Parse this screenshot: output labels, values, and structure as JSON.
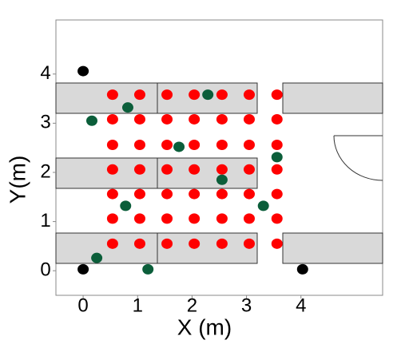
{
  "chart_data": {
    "type": "scatter",
    "xlabel": "X (m)",
    "ylabel": "Y(m)",
    "xlim": [
      -0.5,
      5.5
    ],
    "ylim": [
      -0.5,
      5.1
    ],
    "xticks": [
      0,
      1,
      2,
      3,
      4
    ],
    "yticks": [
      0,
      1,
      2,
      3,
      4
    ],
    "series": [
      {
        "color": "#ff0000",
        "x": [
          0.54,
          1.04,
          1.54,
          2.04,
          2.55,
          3.05,
          3.56,
          0.54,
          1.04,
          1.54,
          2.04,
          2.55,
          3.05,
          3.56,
          0.54,
          1.04,
          1.54,
          2.04,
          2.55,
          3.05,
          3.56,
          0.54,
          1.04,
          1.54,
          2.04,
          2.55,
          3.05,
          3.56,
          0.54,
          1.04,
          1.54,
          2.04,
          2.55,
          3.05,
          3.56,
          0.54,
          1.04,
          1.54,
          2.04,
          2.55,
          3.05,
          3.56,
          0.54,
          1.04,
          1.54,
          2.04,
          2.55,
          3.05,
          3.56
        ],
        "values": [
          3.58,
          3.58,
          3.58,
          3.58,
          3.58,
          3.58,
          3.58,
          3.08,
          3.08,
          3.08,
          3.08,
          3.08,
          3.08,
          3.08,
          2.56,
          2.56,
          2.56,
          2.56,
          2.56,
          2.56,
          2.56,
          2.06,
          2.06,
          2.06,
          2.06,
          2.06,
          2.06,
          2.06,
          1.56,
          1.56,
          1.56,
          1.56,
          1.56,
          1.56,
          1.56,
          1.06,
          1.06,
          1.06,
          1.06,
          1.06,
          1.06,
          1.06,
          0.55,
          0.55,
          0.55,
          0.55,
          0.55,
          0.55,
          0.55
        ]
      },
      {
        "color": "#0b5e3a",
        "x": [
          2.29,
          0.82,
          0.16,
          1.76,
          3.56,
          2.55,
          0.78,
          3.31,
          0.25,
          1.19
        ],
        "values": [
          3.58,
          3.32,
          3.05,
          2.52,
          2.31,
          1.85,
          1.32,
          1.32,
          0.26,
          0.03
        ]
      },
      {
        "color": "#000000",
        "x": [
          0,
          0,
          4.03
        ],
        "values": [
          4.06,
          0.03,
          0.03
        ]
      }
    ]
  }
}
